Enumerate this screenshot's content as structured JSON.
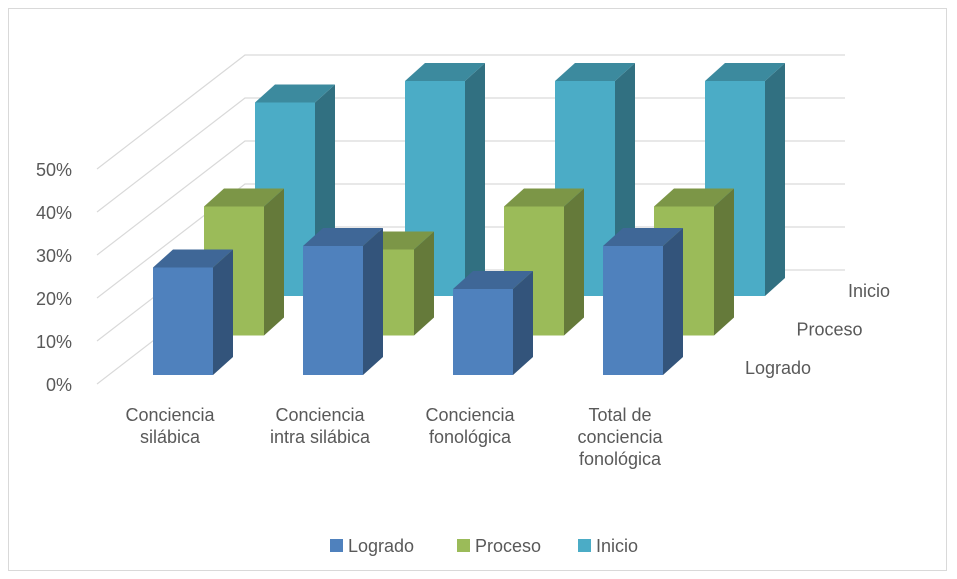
{
  "chart_data": {
    "type": "bar3d",
    "categories": [
      "Conciencia silábica",
      "Conciencia intra silábica",
      "Conciencia fonológica",
      "Total de conciencia fonológica"
    ],
    "series": [
      {
        "name": "Logrado",
        "color": "#4f81bd",
        "values": [
          25,
          30,
          20,
          30
        ]
      },
      {
        "name": "Proceso",
        "color": "#9bbb59",
        "values": [
          30,
          20,
          30,
          30
        ]
      },
      {
        "name": "Inicio",
        "color": "#4bacc6",
        "values": [
          45,
          50,
          50,
          50
        ]
      }
    ],
    "ylim": [
      0,
      50
    ],
    "yticks": [
      {
        "value": 0,
        "label": "0%"
      },
      {
        "value": 10,
        "label": "10%"
      },
      {
        "value": 20,
        "label": "20%"
      },
      {
        "value": 30,
        "label": "30%"
      },
      {
        "value": 40,
        "label": "40%"
      },
      {
        "value": 50,
        "label": "50%"
      }
    ],
    "grid": true,
    "legend": "bottom"
  }
}
